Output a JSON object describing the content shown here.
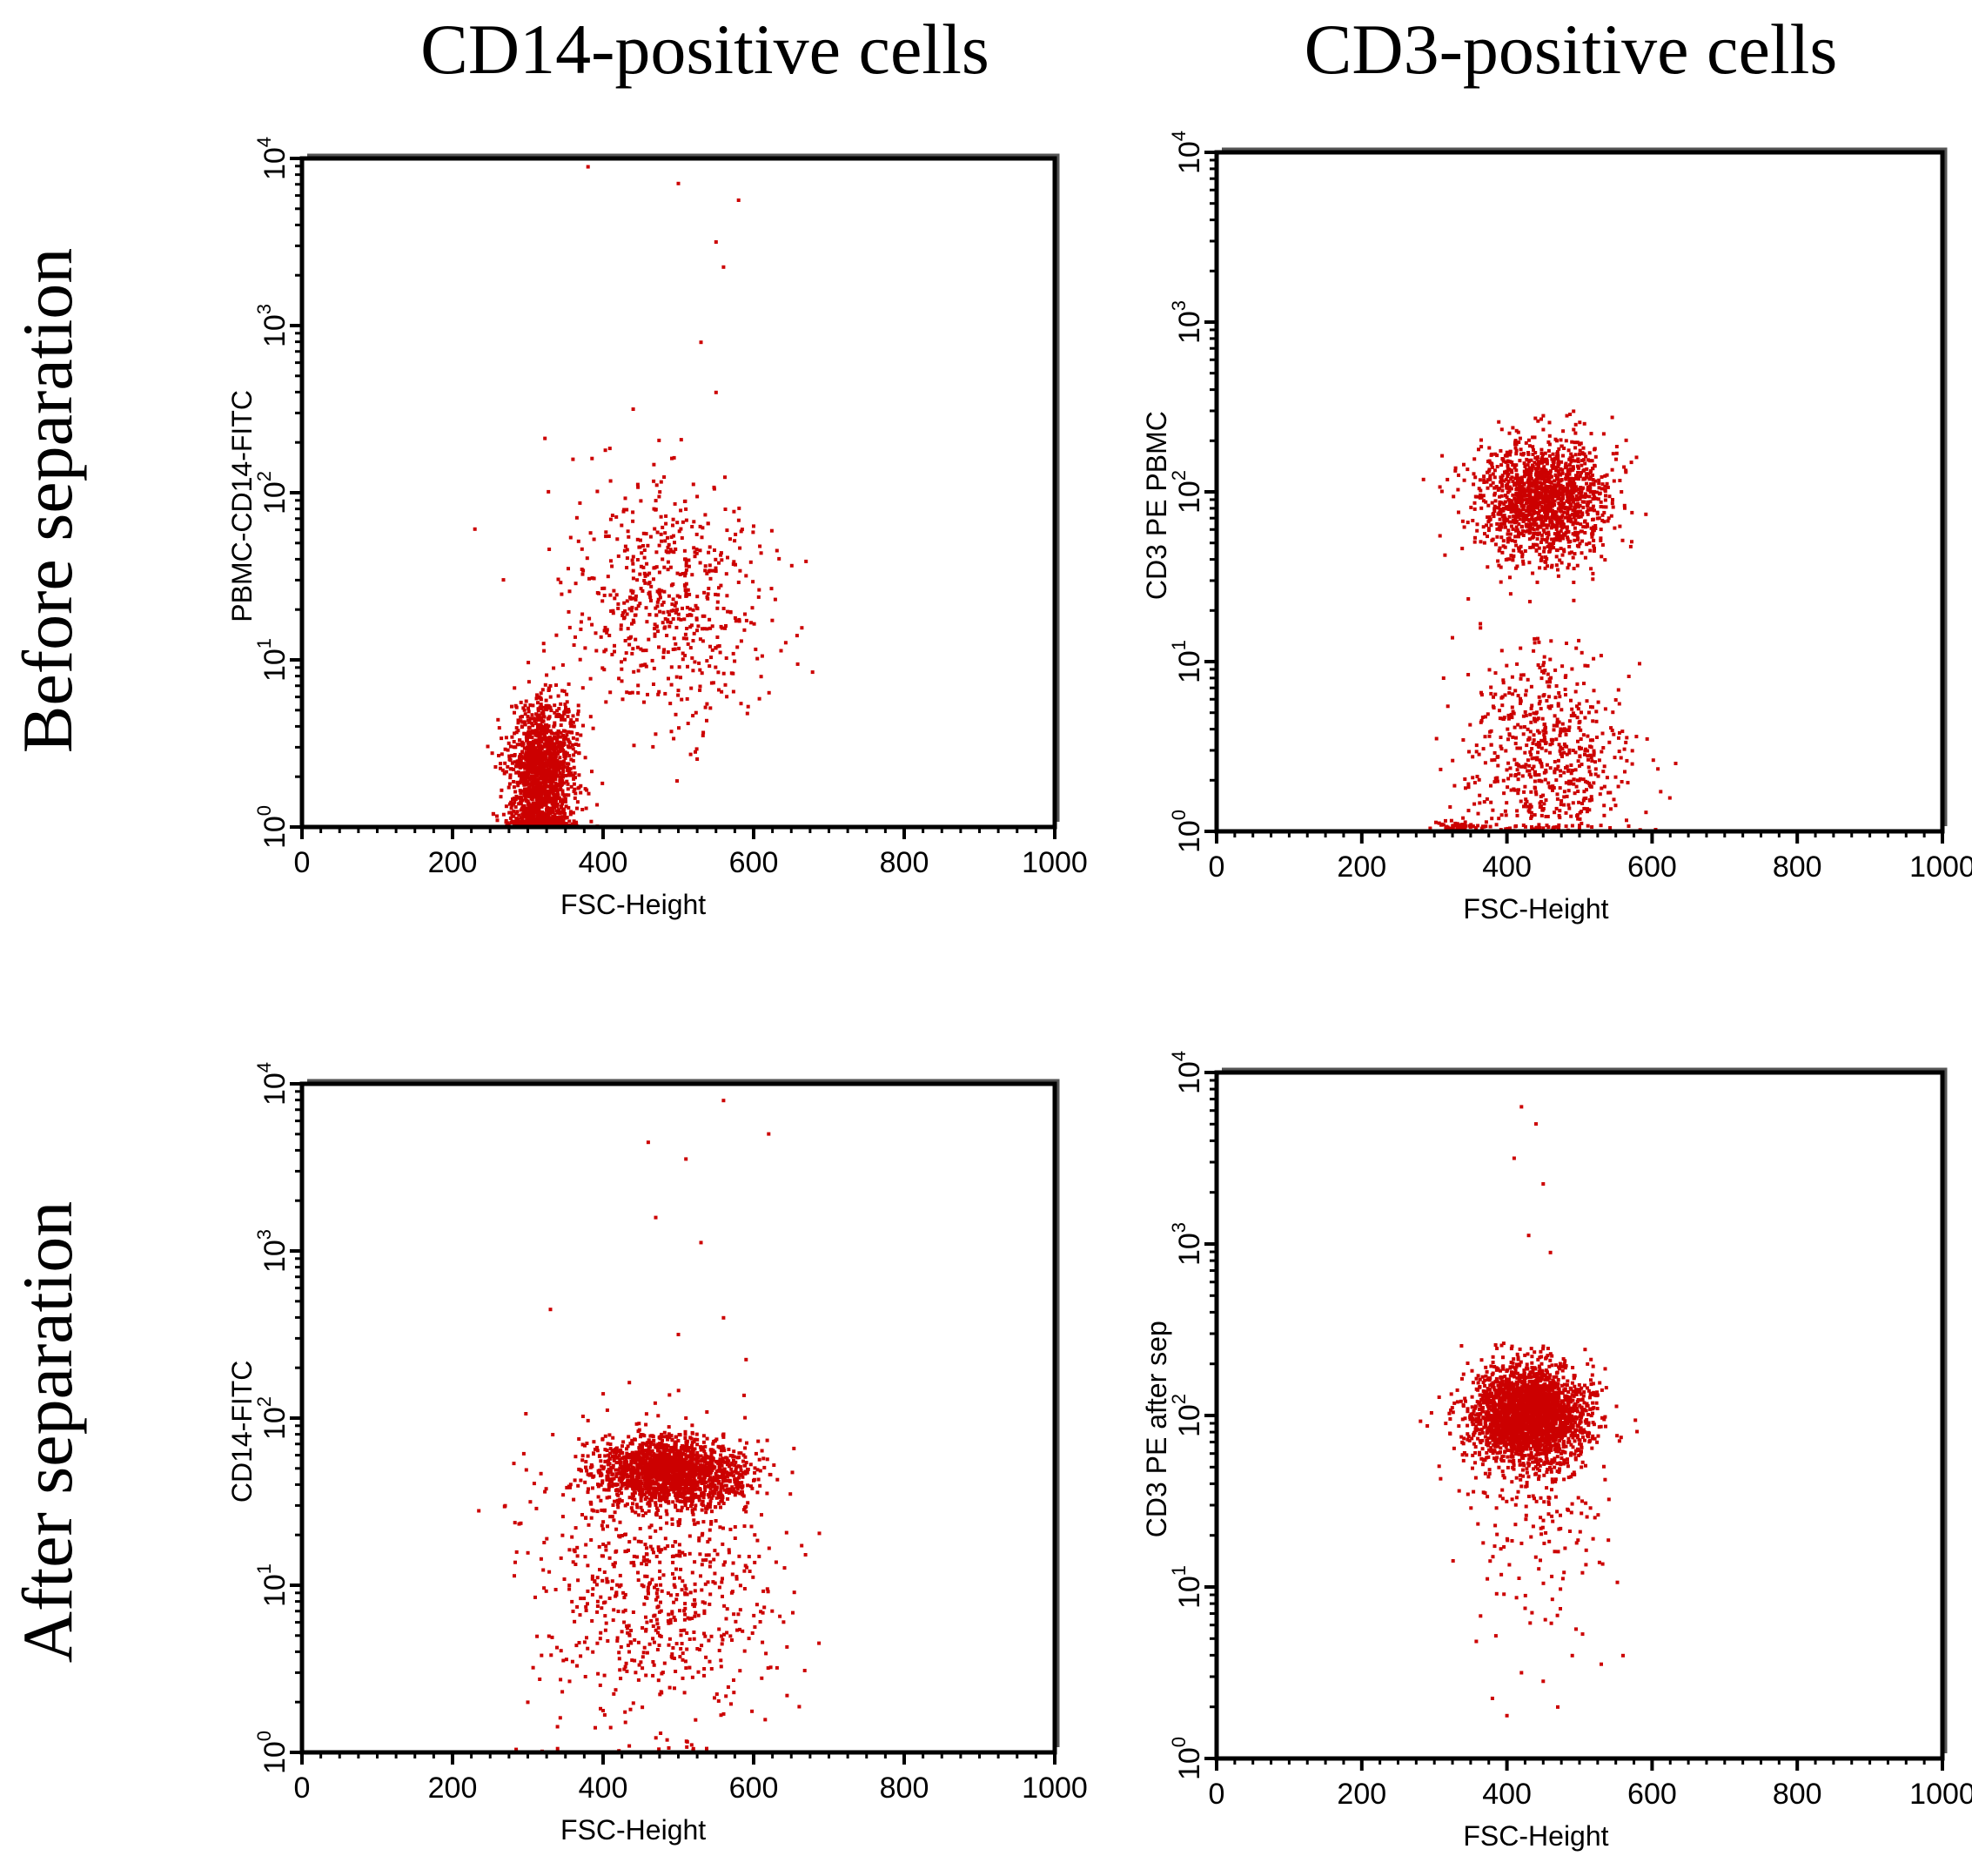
{
  "figure": {
    "column_titles": [
      "CD14-positive cells",
      "CD3-positive cells"
    ],
    "row_titles": [
      "Before separation",
      "After separation"
    ],
    "point_color": "#cc0000"
  },
  "chart_data": [
    {
      "type": "scatter",
      "id": "before-cd14",
      "title": "",
      "xlabel": "FSC-Height",
      "ylabel": "PBMC-CD14-FITC",
      "xlim": [
        0,
        1000
      ],
      "ylim_log10": [
        0,
        4
      ],
      "x_ticks": [
        "0",
        "200",
        "400",
        "600",
        "800",
        "1000"
      ],
      "y_ticks": [
        {
          "base": "10",
          "exp": "0"
        },
        {
          "base": "10",
          "exp": "1"
        },
        {
          "base": "10",
          "exp": "2"
        },
        {
          "base": "10",
          "exp": "3"
        },
        {
          "base": "10",
          "exp": "4"
        }
      ],
      "clusters": [
        {
          "x": 320,
          "logy": 0.35,
          "sx": 22,
          "sy": 0.2,
          "n": 1400
        },
        {
          "x": 315,
          "logy": 0.05,
          "sx": 20,
          "sy": 0.05,
          "n": 250
        },
        {
          "x": 480,
          "logy": 1.35,
          "sx": 70,
          "sy": 0.35,
          "n": 600
        }
      ],
      "outliers": [
        [
          380,
          3.95
        ],
        [
          500,
          3.85
        ],
        [
          580,
          3.75
        ],
        [
          550,
          3.5
        ],
        [
          560,
          3.35
        ],
        [
          530,
          2.9
        ],
        [
          550,
          2.6
        ],
        [
          440,
          2.5
        ],
        [
          360,
          2.2
        ],
        [
          520,
          2.05
        ],
        [
          600,
          1.8
        ],
        [
          610,
          0.9
        ]
      ]
    },
    {
      "type": "scatter",
      "id": "before-cd3",
      "title": "",
      "xlabel": "FSC-Height",
      "ylabel": "CD3 PE PBMC",
      "xlim": [
        0,
        1000
      ],
      "ylim_log10": [
        0,
        4
      ],
      "x_ticks": [
        "0",
        "200",
        "400",
        "600",
        "800",
        "1000"
      ],
      "y_ticks": [
        {
          "base": "10",
          "exp": "0"
        },
        {
          "base": "10",
          "exp": "1"
        },
        {
          "base": "10",
          "exp": "2"
        },
        {
          "base": "10",
          "exp": "3"
        },
        {
          "base": "10",
          "exp": "4"
        }
      ],
      "clusters": [
        {
          "x": 450,
          "logy": 1.95,
          "sx": 45,
          "sy": 0.18,
          "n": 1500
        },
        {
          "x": 455,
          "logy": 0.45,
          "sx": 55,
          "sy": 0.3,
          "n": 650
        },
        {
          "x": 330,
          "logy": 0.02,
          "sx": 15,
          "sy": 0.02,
          "n": 60
        }
      ],
      "outliers": []
    },
    {
      "type": "scatter",
      "id": "after-cd14",
      "title": "",
      "xlabel": "FSC-Height",
      "ylabel": "CD14-FITC",
      "xlim": [
        0,
        1000
      ],
      "ylim_log10": [
        0,
        4
      ],
      "x_ticks": [
        "0",
        "200",
        "400",
        "600",
        "800",
        "1000"
      ],
      "y_ticks": [
        {
          "base": "10",
          "exp": "0"
        },
        {
          "base": "10",
          "exp": "1"
        },
        {
          "base": "10",
          "exp": "2"
        },
        {
          "base": "10",
          "exp": "3"
        },
        {
          "base": "10",
          "exp": "4"
        }
      ],
      "clusters": [
        {
          "x": 490,
          "logy": 1.68,
          "sx": 50,
          "sy": 0.1,
          "n": 1800
        },
        {
          "x": 470,
          "logy": 1.0,
          "sx": 80,
          "sy": 0.45,
          "n": 700
        }
      ],
      "outliers": [
        [
          560,
          3.9
        ],
        [
          460,
          3.65
        ],
        [
          510,
          3.55
        ],
        [
          620,
          3.7
        ],
        [
          470,
          3.2
        ],
        [
          530,
          3.05
        ],
        [
          330,
          2.65
        ],
        [
          500,
          2.5
        ],
        [
          590,
          2.35
        ],
        [
          510,
          2.0
        ],
        [
          560,
          2.6
        ],
        [
          300,
          0.3
        ],
        [
          400,
          0.25
        ]
      ]
    },
    {
      "type": "scatter",
      "id": "after-cd3",
      "title": "",
      "xlabel": "FSC-Height",
      "ylabel": "CD3 PE after sep",
      "xlim": [
        0,
        1000
      ],
      "ylim_log10": [
        0,
        4
      ],
      "x_ticks": [
        "0",
        "200",
        "400",
        "600",
        "800",
        "1000"
      ],
      "y_ticks": [
        {
          "base": "10",
          "exp": "0"
        },
        {
          "base": "10",
          "exp": "1"
        },
        {
          "base": "10",
          "exp": "2"
        },
        {
          "base": "10",
          "exp": "3"
        },
        {
          "base": "10",
          "exp": "4"
        }
      ],
      "clusters": [
        {
          "x": 430,
          "logy": 2.0,
          "sx": 40,
          "sy": 0.14,
          "n": 2600
        },
        {
          "x": 440,
          "logy": 1.4,
          "sx": 50,
          "sy": 0.35,
          "n": 180
        }
      ],
      "outliers": [
        [
          420,
          3.8
        ],
        [
          440,
          3.7
        ],
        [
          410,
          3.5
        ],
        [
          450,
          3.35
        ],
        [
          430,
          3.05
        ],
        [
          460,
          2.95
        ],
        [
          420,
          0.5
        ],
        [
          380,
          0.35
        ],
        [
          450,
          0.45
        ],
        [
          490,
          0.6
        ],
        [
          530,
          0.55
        ],
        [
          400,
          0.25
        ],
        [
          470,
          0.3
        ],
        [
          560,
          0.6
        ]
      ]
    }
  ]
}
